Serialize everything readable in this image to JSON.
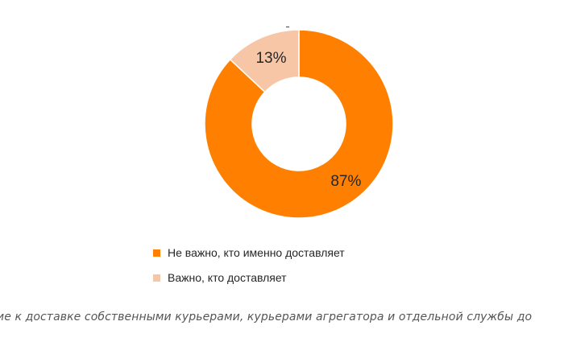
{
  "chart_data": {
    "type": "pie",
    "donut": true,
    "categories": [
      "Не важно, кто именно доставляет",
      "Важно, кто доставляет"
    ],
    "values": [
      87,
      13
    ],
    "data_labels": [
      "87%",
      "13%"
    ],
    "colors": [
      "#FF8000",
      "#F6C6A6"
    ],
    "legend_position": "bottom",
    "title": ""
  },
  "caption": "ие к доставке собственными курьерами, курьерами агрегатора и отдельной службы до"
}
